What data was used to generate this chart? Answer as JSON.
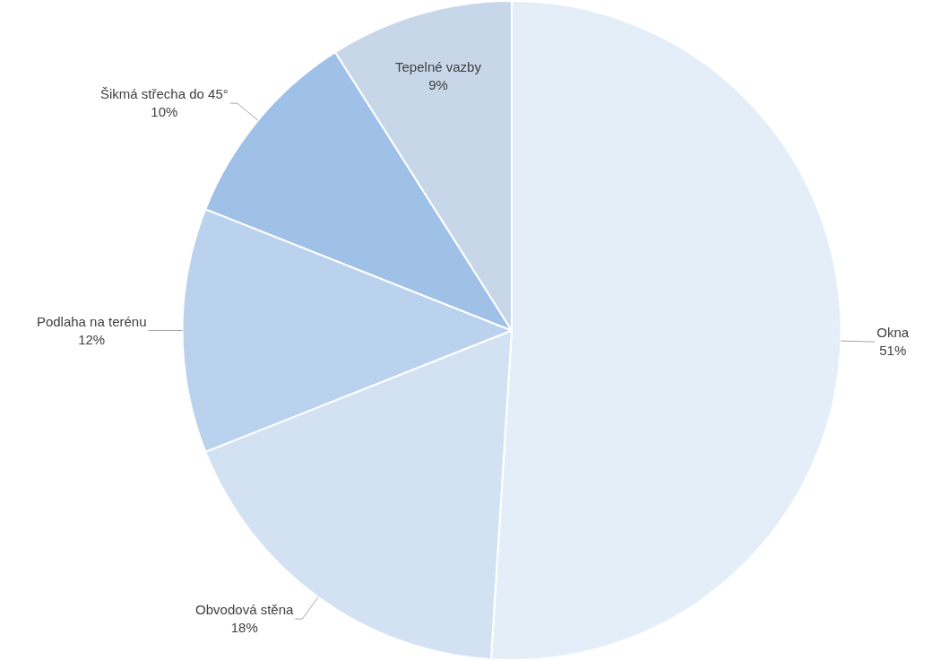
{
  "chart_data": {
    "type": "pie",
    "categories": [
      "Okna",
      "Obvodová stěna",
      "Podlaha na terénu",
      "Šikmá střecha do 45°",
      "Tepelné vazby"
    ],
    "values": [
      51,
      18,
      12,
      10,
      9
    ],
    "value_labels": [
      "51%",
      "18%",
      "12%",
      "10%",
      "9%"
    ],
    "colors": [
      "#e4eef9",
      "#d3e2f3",
      "#bad2ee",
      "#9fc0e7",
      "#c8d6e9"
    ],
    "legend": false
  }
}
